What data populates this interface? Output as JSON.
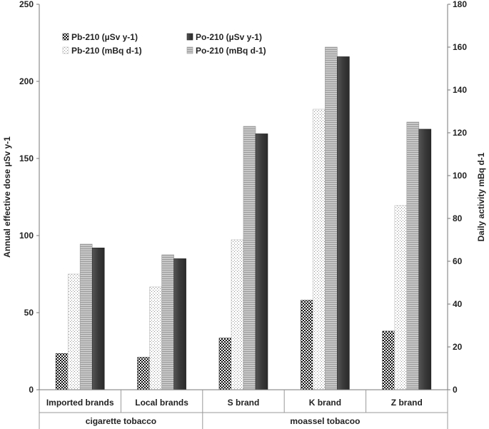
{
  "chart_data": {
    "type": "bar",
    "categories": [
      "Imported brands",
      "Local brands",
      "S brand",
      "K brand",
      "Z brand"
    ],
    "groups": [
      {
        "label": "cigarette tobacco",
        "categories": [
          "Imported brands",
          "Local brands"
        ]
      },
      {
        "label": "moassel tobacoo",
        "categories": [
          "S brand",
          "K brand",
          "Z brand"
        ]
      }
    ],
    "y_left": {
      "label": "Annual effective dose µSv y-1",
      "range": [
        0,
        250
      ],
      "ticks": [
        "0",
        "50",
        "100",
        "150",
        "200",
        "250"
      ]
    },
    "y_right": {
      "label": "Daily activity mBq d-1",
      "range": [
        0,
        180
      ],
      "ticks": [
        "0",
        "20",
        "40",
        "60",
        "80",
        "100",
        "120",
        "140",
        "160",
        "180"
      ]
    },
    "series": [
      {
        "name": "Pb-210  (µSv y-1)",
        "axis": "left",
        "pattern": "checker",
        "values": [
          23.5,
          21,
          33.5,
          58,
          38
        ]
      },
      {
        "name": "Pb-210 (mBq d-1)",
        "axis": "right",
        "pattern": "dots",
        "values": [
          54,
          48,
          70,
          131,
          86
        ]
      },
      {
        "name": "Po-210 (mBq d-1)",
        "axis": "right",
        "pattern": "gray",
        "values": [
          68,
          63,
          123,
          160,
          125
        ]
      },
      {
        "name": "Po-210 (µSv y-1)",
        "axis": "left",
        "pattern": "dark",
        "values": [
          92,
          85,
          166,
          216,
          169
        ]
      }
    ],
    "legend": {
      "placement": "top-left",
      "order": [
        0,
        3,
        1,
        2
      ]
    },
    "grid": false
  }
}
